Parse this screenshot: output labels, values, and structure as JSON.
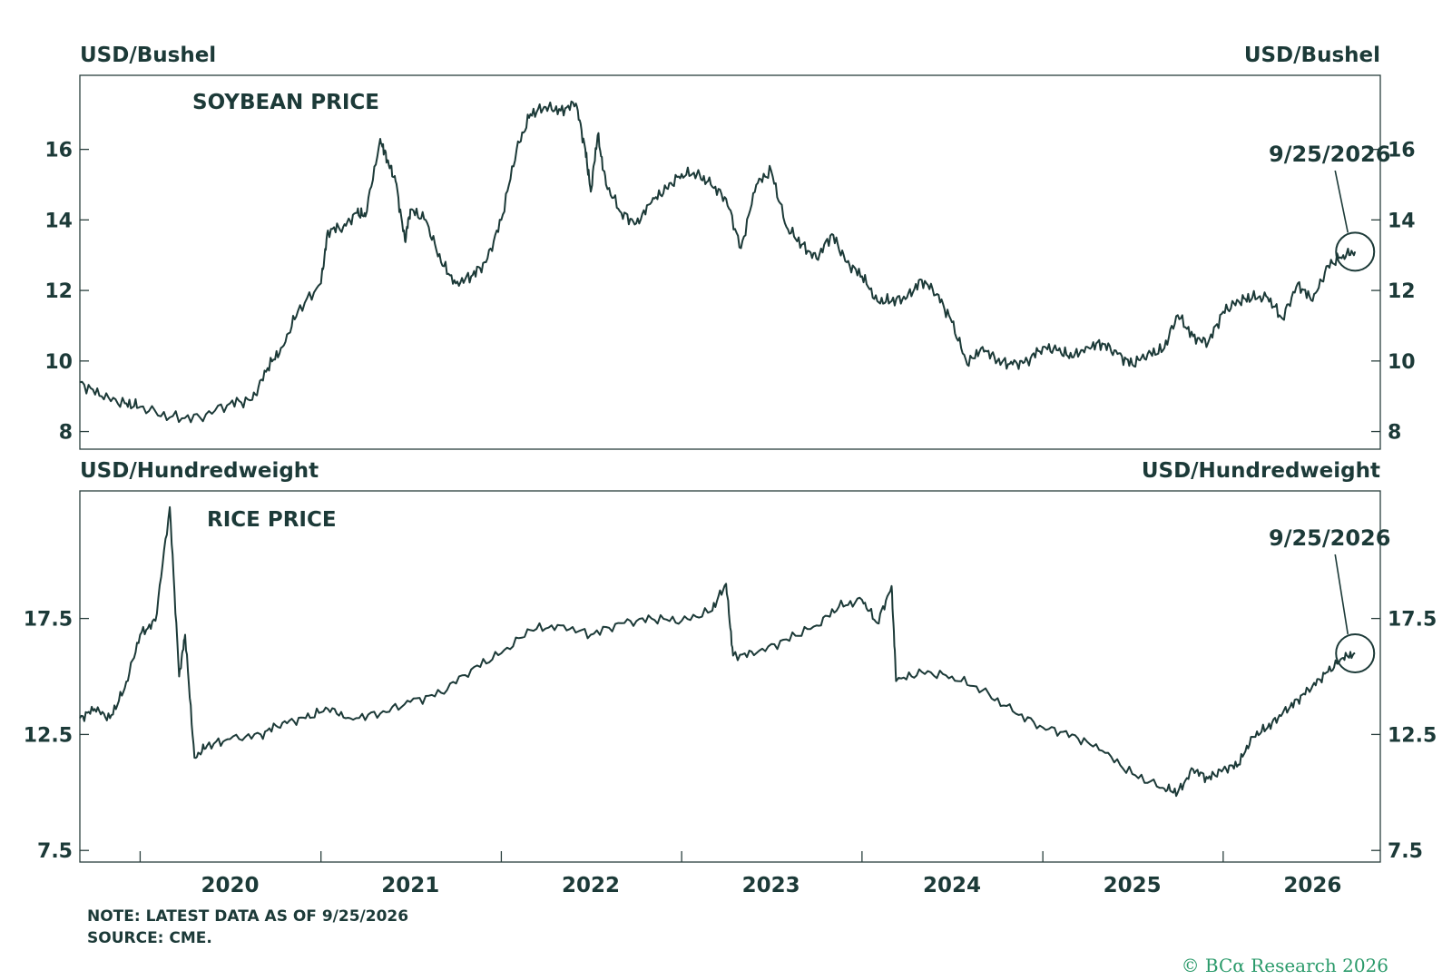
{
  "colors": {
    "ink": "#1c3a38",
    "frame": "#2a3f3d",
    "brand": "#2a9a6a"
  },
  "note": "NOTE: LATEST DATA AS OF 9/25/2026",
  "source": "SOURCE: CME.",
  "copyright": "© BCα Research 2026",
  "chart_data": [
    {
      "type": "line",
      "title": "SOYBEAN PRICE",
      "ylabel_left": "USD/Bushel",
      "ylabel_right": "USD/Bushel",
      "yticks": [
        8,
        10,
        12,
        14,
        16
      ],
      "ylim": [
        7.5,
        18.1
      ],
      "xlim": [
        "2019-09-01",
        "2026-11-15"
      ],
      "annotation": {
        "text": "9/25/2026",
        "date": "2026-09-25",
        "value": 13.1
      },
      "series": [
        {
          "values": [
            [
              "2019-09-01",
              9.4
            ],
            [
              "2019-10-15",
              9.0
            ],
            [
              "2019-12-01",
              8.8
            ],
            [
              "2020-01-01",
              8.7
            ],
            [
              "2020-03-01",
              8.4
            ],
            [
              "2020-05-01",
              8.4
            ],
            [
              "2020-07-01",
              8.8
            ],
            [
              "2020-08-15",
              8.9
            ],
            [
              "2020-09-15",
              9.8
            ],
            [
              "2020-10-15",
              10.4
            ],
            [
              "2020-11-15",
              11.4
            ],
            [
              "2021-01-01",
              12.2
            ],
            [
              "2021-01-15",
              13.7
            ],
            [
              "2021-02-15",
              13.8
            ],
            [
              "2021-03-15",
              14.2
            ],
            [
              "2021-04-01",
              14.1
            ],
            [
              "2021-05-01",
              16.3
            ],
            [
              "2021-05-15",
              15.7
            ],
            [
              "2021-06-01",
              15.1
            ],
            [
              "2021-06-20",
              13.4
            ],
            [
              "2021-07-01",
              14.3
            ],
            [
              "2021-08-01",
              14.0
            ],
            [
              "2021-09-01",
              12.8
            ],
            [
              "2021-10-01",
              12.2
            ],
            [
              "2021-11-01",
              12.4
            ],
            [
              "2021-12-01",
              12.8
            ],
            [
              "2022-01-01",
              14.0
            ],
            [
              "2022-02-01",
              16.0
            ],
            [
              "2022-03-01",
              17.0
            ],
            [
              "2022-04-01",
              17.2
            ],
            [
              "2022-05-01",
              17.1
            ],
            [
              "2022-06-01",
              17.3
            ],
            [
              "2022-06-20",
              16.0
            ],
            [
              "2022-07-01",
              14.8
            ],
            [
              "2022-07-15",
              16.4
            ],
            [
              "2022-08-01",
              15.0
            ],
            [
              "2022-09-01",
              14.2
            ],
            [
              "2022-10-01",
              13.9
            ],
            [
              "2022-11-01",
              14.5
            ],
            [
              "2022-12-01",
              14.9
            ],
            [
              "2023-01-01",
              15.3
            ],
            [
              "2023-02-01",
              15.3
            ],
            [
              "2023-03-01",
              15.0
            ],
            [
              "2023-04-01",
              14.6
            ],
            [
              "2023-05-01",
              13.2
            ],
            [
              "2023-06-01",
              15.0
            ],
            [
              "2023-07-01",
              15.4
            ],
            [
              "2023-08-01",
              13.8
            ],
            [
              "2023-09-01",
              13.3
            ],
            [
              "2023-10-01",
              12.9
            ],
            [
              "2023-11-01",
              13.6
            ],
            [
              "2023-12-01",
              12.8
            ],
            [
              "2024-01-01",
              12.4
            ],
            [
              "2024-02-01",
              11.7
            ],
            [
              "2024-03-01",
              11.7
            ],
            [
              "2024-04-01",
              11.8
            ],
            [
              "2024-05-01",
              12.3
            ],
            [
              "2024-06-01",
              11.9
            ],
            [
              "2024-07-01",
              11.1
            ],
            [
              "2024-08-01",
              9.9
            ],
            [
              "2024-09-01",
              10.4
            ],
            [
              "2024-10-01",
              10.0
            ],
            [
              "2024-11-01",
              9.9
            ],
            [
              "2024-12-01",
              10.0
            ],
            [
              "2025-01-01",
              10.4
            ],
            [
              "2025-02-01",
              10.3
            ],
            [
              "2025-03-01",
              10.1
            ],
            [
              "2025-04-01",
              10.4
            ],
            [
              "2025-05-01",
              10.5
            ],
            [
              "2025-06-01",
              10.2
            ],
            [
              "2025-07-01",
              9.9
            ],
            [
              "2025-08-01",
              10.2
            ],
            [
              "2025-09-01",
              10.3
            ],
            [
              "2025-10-01",
              11.3
            ],
            [
              "2025-11-01",
              10.7
            ],
            [
              "2025-12-01",
              10.5
            ],
            [
              "2026-01-01",
              11.4
            ],
            [
              "2026-02-01",
              11.7
            ],
            [
              "2026-03-01",
              11.8
            ],
            [
              "2026-04-01",
              11.8
            ],
            [
              "2026-05-01",
              11.2
            ],
            [
              "2026-06-01",
              12.2
            ],
            [
              "2026-07-01",
              11.7
            ],
            [
              "2026-08-01",
              12.7
            ],
            [
              "2026-09-01",
              13.0
            ],
            [
              "2026-09-25",
              13.1
            ]
          ]
        }
      ]
    },
    {
      "type": "line",
      "title": "RICE PRICE",
      "ylabel_left": "USD/Hundredweight",
      "ylabel_right": "USD/Hundredweight",
      "yticks": [
        7.5,
        12.5,
        17.5
      ],
      "ylim": [
        7.0,
        23.0
      ],
      "xlim": [
        "2019-09-01",
        "2026-11-15"
      ],
      "xticks": [
        "2020",
        "2021",
        "2022",
        "2023",
        "2024",
        "2025",
        "2026"
      ],
      "annotation": {
        "text": "9/25/2026",
        "date": "2026-09-25",
        "value": 16.0
      },
      "series": [
        {
          "values": [
            [
              "2019-09-01",
              13.2
            ],
            [
              "2019-10-01",
              13.6
            ],
            [
              "2019-11-01",
              13.2
            ],
            [
              "2019-12-01",
              14.5
            ],
            [
              "2020-01-01",
              16.8
            ],
            [
              "2020-02-01",
              17.4
            ],
            [
              "2020-03-01",
              22.3
            ],
            [
              "2020-03-20",
              15.0
            ],
            [
              "2020-04-01",
              16.8
            ],
            [
              "2020-04-20",
              11.5
            ],
            [
              "2020-05-15",
              12.0
            ],
            [
              "2020-07-01",
              12.3
            ],
            [
              "2020-09-01",
              12.5
            ],
            [
              "2020-10-15",
              13.0
            ],
            [
              "2020-12-01",
              13.2
            ],
            [
              "2021-01-15",
              13.6
            ],
            [
              "2021-03-01",
              13.2
            ],
            [
              "2021-05-01",
              13.4
            ],
            [
              "2021-07-01",
              13.9
            ],
            [
              "2021-09-01",
              14.3
            ],
            [
              "2021-11-01",
              15.3
            ],
            [
              "2022-01-01",
              16.0
            ],
            [
              "2022-03-01",
              17.0
            ],
            [
              "2022-05-01",
              17.2
            ],
            [
              "2022-07-01",
              16.8
            ],
            [
              "2022-09-01",
              17.3
            ],
            [
              "2022-11-01",
              17.5
            ],
            [
              "2023-01-01",
              17.4
            ],
            [
              "2023-03-01",
              17.8
            ],
            [
              "2023-04-01",
              19.0
            ],
            [
              "2023-04-15",
              15.9
            ],
            [
              "2023-06-01",
              16.0
            ],
            [
              "2023-08-01",
              16.6
            ],
            [
              "2023-10-01",
              17.2
            ],
            [
              "2023-11-15",
              18.0
            ],
            [
              "2024-01-01",
              18.3
            ],
            [
              "2024-02-01",
              17.3
            ],
            [
              "2024-03-01",
              18.9
            ],
            [
              "2024-03-10",
              14.8
            ],
            [
              "2024-05-01",
              15.2
            ],
            [
              "2024-07-01",
              15.0
            ],
            [
              "2024-09-01",
              14.4
            ],
            [
              "2024-11-01",
              13.5
            ],
            [
              "2025-01-01",
              12.8
            ],
            [
              "2025-03-01",
              12.5
            ],
            [
              "2025-05-01",
              11.8
            ],
            [
              "2025-07-01",
              10.8
            ],
            [
              "2025-09-01",
              10.2
            ],
            [
              "2025-10-01",
              10.0
            ],
            [
              "2025-11-01",
              11.0
            ],
            [
              "2025-12-01",
              10.6
            ],
            [
              "2026-01-01",
              11.0
            ],
            [
              "2026-02-01",
              11.2
            ],
            [
              "2026-03-01",
              12.4
            ],
            [
              "2026-04-01",
              12.8
            ],
            [
              "2026-05-01",
              13.4
            ],
            [
              "2026-06-01",
              14.0
            ],
            [
              "2026-07-01",
              14.6
            ],
            [
              "2026-08-01",
              15.2
            ],
            [
              "2026-09-01",
              15.8
            ],
            [
              "2026-09-25",
              16.0
            ]
          ]
        }
      ]
    }
  ]
}
